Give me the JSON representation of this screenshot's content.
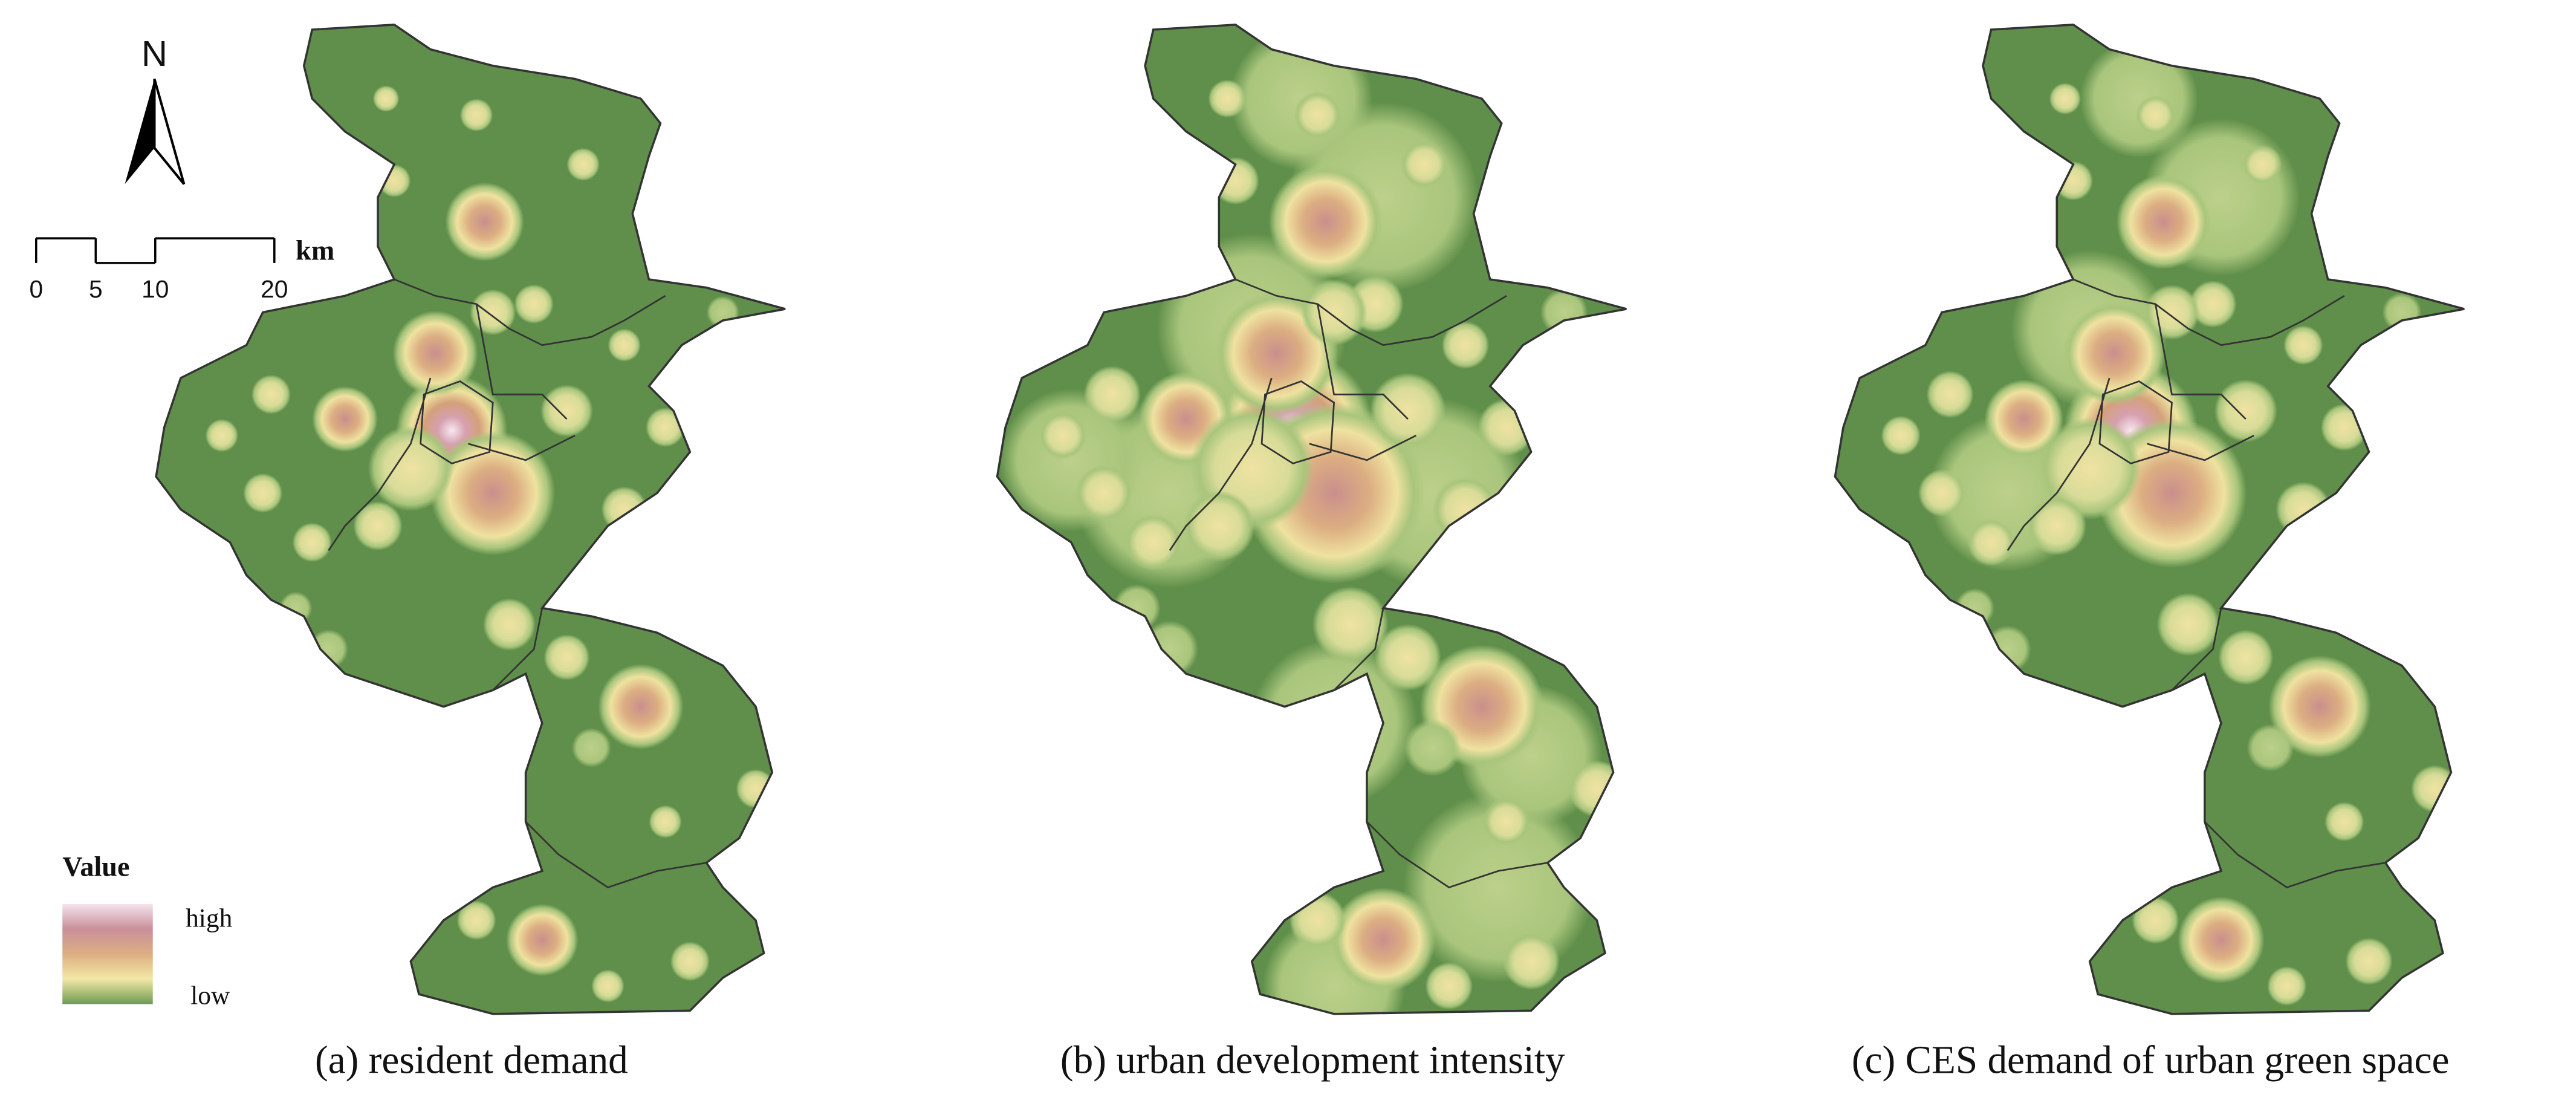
{
  "north_arrow": {
    "label": "N"
  },
  "scale_bar": {
    "unit": "km",
    "ticks": [
      0,
      5,
      10,
      20
    ]
  },
  "legend": {
    "title": "Value",
    "high": "high",
    "low": "low"
  },
  "panels": [
    {
      "caption": "(a) resident demand"
    },
    {
      "caption": "(b) urban development intensity"
    },
    {
      "caption": "(c) CES demand of urban green space"
    }
  ]
}
